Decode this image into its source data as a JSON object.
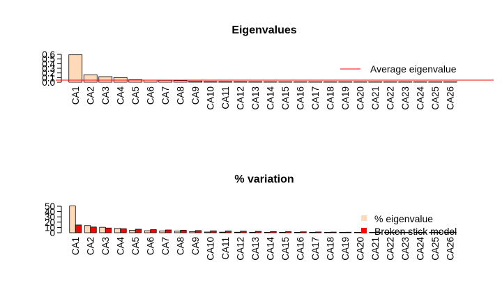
{
  "chart_data": [
    {
      "type": "bar",
      "title": "Eigenvalues",
      "xlabel": "",
      "ylabel": "",
      "categories": [
        "CA1",
        "CA2",
        "CA3",
        "CA4",
        "CA5",
        "CA6",
        "CA7",
        "CA8",
        "CA9",
        "CA10",
        "CA11",
        "CA12",
        "CA13",
        "CA14",
        "CA15",
        "CA16",
        "CA17",
        "CA18",
        "CA19",
        "CA20",
        "CA21",
        "CA22",
        "CA23",
        "CA24",
        "CA25",
        "CA26"
      ],
      "series": [
        {
          "name": "",
          "color": "#FFDAB9",
          "values": [
            0.59,
            0.16,
            0.12,
            0.1,
            0.055,
            0.045,
            0.04,
            0.035,
            0.025,
            0.015,
            0.013,
            0.012,
            0.011,
            0.01,
            0.009,
            0.008,
            0.007,
            0.006,
            0.005,
            0.005,
            0.004,
            0.004,
            0.003,
            0.003,
            0.002,
            0.002
          ]
        }
      ],
      "yticks": [
        "0.0",
        "0.1",
        "0.2",
        "0.3",
        "0.4",
        "0.5",
        "0.6"
      ],
      "ylim": [
        0,
        0.6
      ],
      "reference_line": {
        "label": "Average eigenvalue",
        "value": 0.045,
        "color": "#FF0000"
      },
      "legend": {
        "position": "right",
        "entries": [
          {
            "label": "Average eigenvalue",
            "kind": "line",
            "color": "#FF0000"
          }
        ]
      }
    },
    {
      "type": "bar",
      "title": "% variation",
      "xlabel": "",
      "ylabel": "",
      "categories": [
        "CA1",
        "CA2",
        "CA3",
        "CA4",
        "CA5",
        "CA6",
        "CA7",
        "CA8",
        "CA9",
        "CA10",
        "CA11",
        "CA12",
        "CA13",
        "CA14",
        "CA15",
        "CA16",
        "CA17",
        "CA18",
        "CA19",
        "CA20",
        "CA21",
        "CA22",
        "CA23",
        "CA24",
        "CA25",
        "CA26"
      ],
      "series": [
        {
          "name": "% eigenvalue",
          "color": "#FFDAB9",
          "values": [
            50.5,
            13.5,
            10.3,
            8.2,
            4.7,
            3.8,
            3.3,
            2.9,
            2.1,
            1.3,
            1.1,
            1.0,
            0.9,
            0.85,
            0.8,
            0.7,
            0.6,
            0.5,
            0.45,
            0.4,
            0.35,
            0.3,
            0.25,
            0.2,
            0.15,
            0.1
          ]
        },
        {
          "name": "Broken stick model",
          "color": "#FF0000",
          "values": [
            14.6,
            10.8,
            8.9,
            7.6,
            6.6,
            5.8,
            5.2,
            4.6,
            4.1,
            3.6,
            3.2,
            2.9,
            2.5,
            2.2,
            1.9,
            1.7,
            1.4,
            1.2,
            1.0,
            0.8,
            0.6,
            0.5,
            0.4,
            0.3,
            0.2,
            0.1
          ]
        }
      ],
      "yticks": [
        "0",
        "10",
        "20",
        "30",
        "40",
        "50"
      ],
      "ylim": [
        0,
        50
      ],
      "legend": {
        "position": "right",
        "entries": [
          {
            "label": "% eigenvalue",
            "kind": "box",
            "color": "#FFDAB9"
          },
          {
            "label": "Broken stick model",
            "kind": "box",
            "color": "#FF0000"
          }
        ]
      }
    }
  ]
}
